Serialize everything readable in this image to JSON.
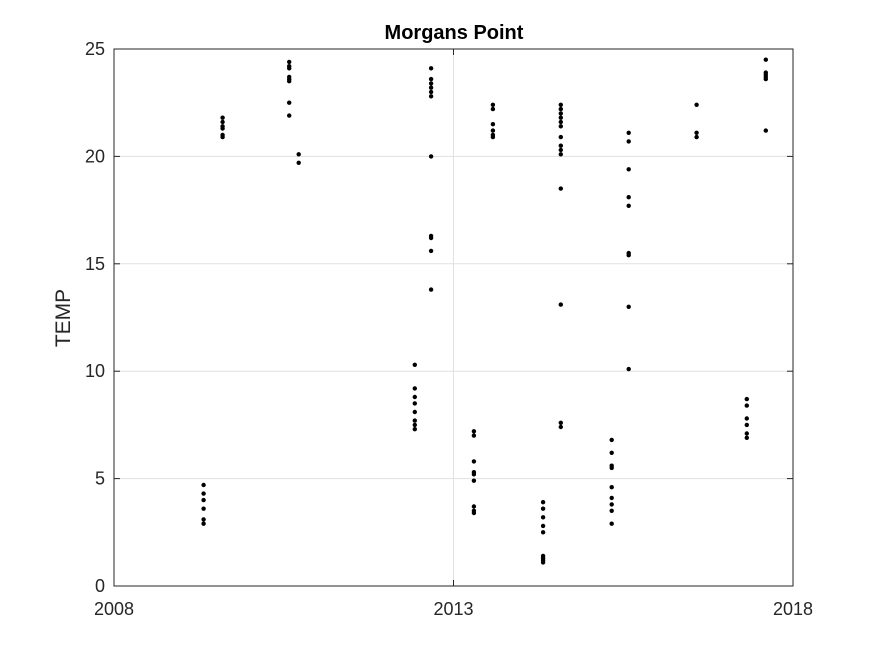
{
  "chart_data": {
    "type": "scatter",
    "title": "Morgans Point",
    "xlabel": "",
    "ylabel": "TEMP",
    "xlim": [
      2008,
      2018
    ],
    "ylim": [
      0,
      25
    ],
    "x_ticks": [
      2008,
      2013,
      2018
    ],
    "x_tick_labels": [
      "2008",
      "2013",
      "2018"
    ],
    "y_ticks": [
      0,
      5,
      10,
      15,
      20,
      25
    ],
    "y_tick_labels": [
      "0",
      "5",
      "10",
      "15",
      "20",
      "25"
    ],
    "grid": true,
    "legend": "none",
    "marker_color": "#000000",
    "grid_color": "#e1e1e1",
    "axis_color": "#262626",
    "series": [
      {
        "points": [
          [
            2009.32,
            4.7
          ],
          [
            2009.32,
            4.3
          ],
          [
            2009.32,
            4.0
          ],
          [
            2009.32,
            3.6
          ],
          [
            2009.32,
            3.1
          ],
          [
            2009.32,
            2.9
          ],
          [
            2009.6,
            21.8
          ],
          [
            2009.6,
            21.6
          ],
          [
            2009.6,
            21.4
          ],
          [
            2009.6,
            21.3
          ],
          [
            2009.6,
            21.0
          ],
          [
            2009.6,
            20.9
          ],
          [
            2010.58,
            24.4
          ],
          [
            2010.58,
            24.2
          ],
          [
            2010.58,
            24.1
          ],
          [
            2010.58,
            23.7
          ],
          [
            2010.58,
            23.6
          ],
          [
            2010.58,
            23.5
          ],
          [
            2010.58,
            22.5
          ],
          [
            2010.58,
            21.9
          ],
          [
            2010.72,
            20.1
          ],
          [
            2010.72,
            19.7
          ],
          [
            2012.43,
            10.3
          ],
          [
            2012.43,
            9.2
          ],
          [
            2012.43,
            8.8
          ],
          [
            2012.43,
            8.5
          ],
          [
            2012.43,
            8.1
          ],
          [
            2012.43,
            7.7
          ],
          [
            2012.43,
            7.5
          ],
          [
            2012.43,
            7.3
          ],
          [
            2012.67,
            24.1
          ],
          [
            2012.67,
            23.6
          ],
          [
            2012.67,
            23.4
          ],
          [
            2012.67,
            23.2
          ],
          [
            2012.67,
            23.0
          ],
          [
            2012.67,
            22.8
          ],
          [
            2012.67,
            20.0
          ],
          [
            2012.67,
            16.3
          ],
          [
            2012.67,
            16.2
          ],
          [
            2012.67,
            15.6
          ],
          [
            2012.67,
            13.8
          ],
          [
            2013.3,
            7.2
          ],
          [
            2013.3,
            7.0
          ],
          [
            2013.3,
            5.8
          ],
          [
            2013.3,
            5.3
          ],
          [
            2013.3,
            5.2
          ],
          [
            2013.3,
            4.9
          ],
          [
            2013.3,
            3.7
          ],
          [
            2013.3,
            3.5
          ],
          [
            2013.3,
            3.4
          ],
          [
            2013.58,
            22.4
          ],
          [
            2013.58,
            22.2
          ],
          [
            2013.58,
            21.5
          ],
          [
            2013.58,
            21.2
          ],
          [
            2013.58,
            21.0
          ],
          [
            2013.58,
            20.9
          ],
          [
            2014.32,
            3.9
          ],
          [
            2014.32,
            3.6
          ],
          [
            2014.32,
            3.2
          ],
          [
            2014.32,
            2.8
          ],
          [
            2014.32,
            2.5
          ],
          [
            2014.32,
            1.4
          ],
          [
            2014.32,
            1.3
          ],
          [
            2014.32,
            1.2
          ],
          [
            2014.32,
            1.1
          ],
          [
            2014.58,
            22.4
          ],
          [
            2014.58,
            22.2
          ],
          [
            2014.58,
            22.0
          ],
          [
            2014.58,
            21.8
          ],
          [
            2014.58,
            21.6
          ],
          [
            2014.58,
            21.4
          ],
          [
            2014.58,
            20.9
          ],
          [
            2014.58,
            20.5
          ],
          [
            2014.58,
            20.3
          ],
          [
            2014.58,
            20.1
          ],
          [
            2014.58,
            18.5
          ],
          [
            2014.58,
            13.1
          ],
          [
            2014.58,
            7.6
          ],
          [
            2014.58,
            7.4
          ],
          [
            2015.33,
            6.8
          ],
          [
            2015.33,
            6.2
          ],
          [
            2015.33,
            5.6
          ],
          [
            2015.33,
            5.5
          ],
          [
            2015.33,
            4.6
          ],
          [
            2015.33,
            4.1
          ],
          [
            2015.33,
            3.8
          ],
          [
            2015.33,
            3.5
          ],
          [
            2015.33,
            2.9
          ],
          [
            2015.58,
            21.1
          ],
          [
            2015.58,
            20.7
          ],
          [
            2015.58,
            19.4
          ],
          [
            2015.58,
            18.1
          ],
          [
            2015.58,
            17.7
          ],
          [
            2015.58,
            15.5
          ],
          [
            2015.58,
            15.4
          ],
          [
            2015.58,
            13.0
          ],
          [
            2015.58,
            10.1
          ],
          [
            2016.58,
            22.4
          ],
          [
            2016.58,
            21.1
          ],
          [
            2016.58,
            20.9
          ],
          [
            2017.32,
            8.7
          ],
          [
            2017.32,
            8.4
          ],
          [
            2017.32,
            7.8
          ],
          [
            2017.32,
            7.5
          ],
          [
            2017.32,
            7.1
          ],
          [
            2017.32,
            6.9
          ],
          [
            2017.6,
            24.5
          ],
          [
            2017.6,
            23.9
          ],
          [
            2017.6,
            23.8
          ],
          [
            2017.6,
            23.7
          ],
          [
            2017.6,
            23.6
          ],
          [
            2017.6,
            21.2
          ]
        ]
      }
    ]
  }
}
